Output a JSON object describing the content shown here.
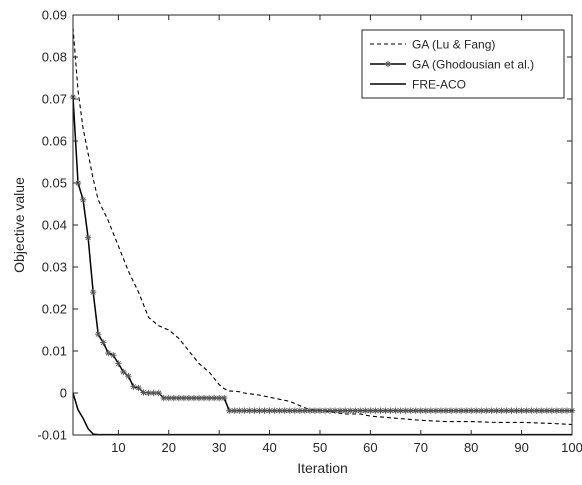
{
  "chart_data": {
    "type": "line",
    "title": "",
    "xlabel": "Iteration",
    "ylabel": "Objective value",
    "xlim": [
      1,
      100
    ],
    "ylim": [
      -0.01,
      0.09
    ],
    "xticks": [
      10,
      20,
      30,
      40,
      50,
      60,
      70,
      80,
      90,
      100
    ],
    "xtick_labels": [
      "10",
      "20",
      "30",
      "40",
      "50",
      "60",
      "70",
      "80",
      "90",
      "100"
    ],
    "yticks": [
      -0.01,
      0,
      0.01,
      0.02,
      0.03,
      0.04,
      0.05,
      0.06,
      0.07,
      0.08,
      0.09
    ],
    "ytick_labels": [
      "-0.01",
      "0",
      "0.01",
      "0.02",
      "0.03",
      "0.04",
      "0.05",
      "0.06",
      "0.07",
      "0.08",
      "0.09"
    ],
    "grid": false,
    "legend_position": "top-right",
    "series": [
      {
        "name": "GA (Lu & Fang)",
        "style": "dashed",
        "color": "#000000",
        "x": [
          1,
          2,
          3,
          4,
          5,
          6,
          8,
          10,
          12,
          14,
          16,
          18,
          20,
          22,
          24,
          26,
          28,
          30,
          31,
          32,
          34,
          35,
          38,
          40,
          42,
          44,
          46,
          48,
          50,
          52,
          55,
          58,
          60,
          65,
          70,
          75,
          80,
          85,
          90,
          95,
          100
        ],
        "y": [
          0.087,
          0.072,
          0.063,
          0.057,
          0.051,
          0.046,
          0.041,
          0.035,
          0.029,
          0.024,
          0.018,
          0.016,
          0.015,
          0.013,
          0.01,
          0.007,
          0.005,
          0.002,
          0.001,
          0.0005,
          0.0003,
          0.0,
          -0.0005,
          -0.001,
          -0.0015,
          -0.002,
          -0.003,
          -0.004,
          -0.004,
          -0.0045,
          -0.005,
          -0.005,
          -0.0055,
          -0.006,
          -0.0065,
          -0.0068,
          -0.0068,
          -0.007,
          -0.007,
          -0.0072,
          -0.0075
        ]
      },
      {
        "name": "GA (Ghodousian et al.)",
        "style": "solid-star",
        "color": "#000000",
        "x": [
          1,
          2,
          3,
          4,
          5,
          6,
          7,
          8,
          9,
          10,
          11,
          12,
          13,
          14,
          15,
          16,
          17,
          18,
          19,
          20,
          21,
          22,
          23,
          24,
          25,
          26,
          27,
          28,
          29,
          30,
          31,
          32,
          33,
          34,
          35,
          36,
          37,
          38,
          39,
          40,
          41,
          42,
          43,
          44,
          45,
          46,
          47,
          48,
          49,
          50,
          51,
          52,
          53,
          54,
          55,
          56,
          57,
          58,
          59,
          60,
          61,
          62,
          63,
          64,
          65,
          66,
          67,
          68,
          69,
          70,
          71,
          72,
          73,
          74,
          75,
          76,
          77,
          78,
          79,
          80,
          81,
          82,
          83,
          84,
          85,
          86,
          87,
          88,
          89,
          90,
          91,
          92,
          93,
          94,
          95,
          96,
          97,
          98,
          99,
          100
        ],
        "y": [
          0.0705,
          0.05,
          0.046,
          0.037,
          0.024,
          0.014,
          0.012,
          0.0095,
          0.009,
          0.007,
          0.005,
          0.004,
          0.0015,
          0.0012,
          0.0001,
          0.0,
          0.0,
          0.0,
          -0.0012,
          -0.0012,
          -0.0012,
          -0.0012,
          -0.0012,
          -0.0012,
          -0.0012,
          -0.0012,
          -0.0012,
          -0.0012,
          -0.0012,
          -0.0012,
          -0.0012,
          -0.0042,
          -0.0042,
          -0.0042,
          -0.0042,
          -0.0042,
          -0.0042,
          -0.0042,
          -0.0042,
          -0.0042,
          -0.0042,
          -0.0042,
          -0.0042,
          -0.0042,
          -0.0042,
          -0.0042,
          -0.0042,
          -0.0042,
          -0.0042,
          -0.0042,
          -0.0042,
          -0.0042,
          -0.0042,
          -0.0042,
          -0.0042,
          -0.0042,
          -0.0042,
          -0.0042,
          -0.0042,
          -0.0042,
          -0.0042,
          -0.0042,
          -0.0042,
          -0.0042,
          -0.0042,
          -0.0042,
          -0.0042,
          -0.0042,
          -0.0042,
          -0.0042,
          -0.0042,
          -0.0042,
          -0.0042,
          -0.0042,
          -0.0042,
          -0.0042,
          -0.0042,
          -0.0042,
          -0.0042,
          -0.0042,
          -0.0042,
          -0.0042,
          -0.0042,
          -0.0042,
          -0.0042,
          -0.0042,
          -0.0042,
          -0.0042,
          -0.0042,
          -0.0042,
          -0.0042,
          -0.0042,
          -0.0042,
          -0.0042,
          -0.0042,
          -0.0042,
          -0.0042,
          -0.0042,
          -0.0042,
          -0.0042
        ]
      },
      {
        "name": "FRE-ACO",
        "style": "solid",
        "color": "#000000",
        "x": [
          1,
          2,
          3,
          4,
          5,
          6,
          8,
          10,
          100
        ],
        "y": [
          0.0,
          -0.004,
          -0.006,
          -0.0085,
          -0.0098,
          -0.0099,
          -0.0099,
          -0.0099,
          -0.0099
        ]
      }
    ]
  }
}
